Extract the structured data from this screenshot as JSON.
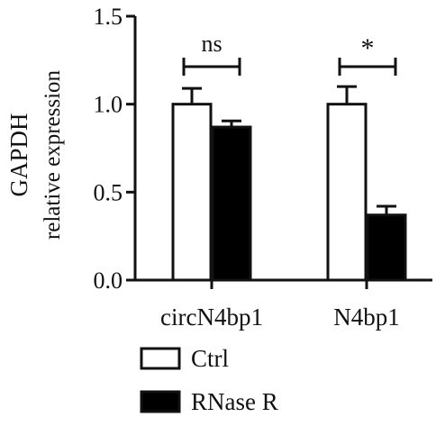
{
  "chart_data": {
    "type": "bar",
    "title": "",
    "xlabel": "",
    "ylabel": [
      "GAPDH",
      "relative expression"
    ],
    "ylim": [
      0,
      1.5
    ],
    "yticks": [
      "0.0",
      "0.5",
      "1.0",
      "1.5"
    ],
    "categories": [
      "circN4bp1",
      "N4bp1"
    ],
    "series": [
      {
        "name": "Ctrl",
        "values": [
          1.0,
          1.0
        ],
        "errors": [
          0.09,
          0.1
        ],
        "color": "#ffffff"
      },
      {
        "name": "RNase R",
        "values": [
          0.87,
          0.37
        ],
        "errors": [
          0.035,
          0.05
        ],
        "color": "#000000"
      }
    ],
    "annotations": [
      "ns",
      "*"
    ],
    "legend_position": "bottom-left",
    "grid": false
  }
}
